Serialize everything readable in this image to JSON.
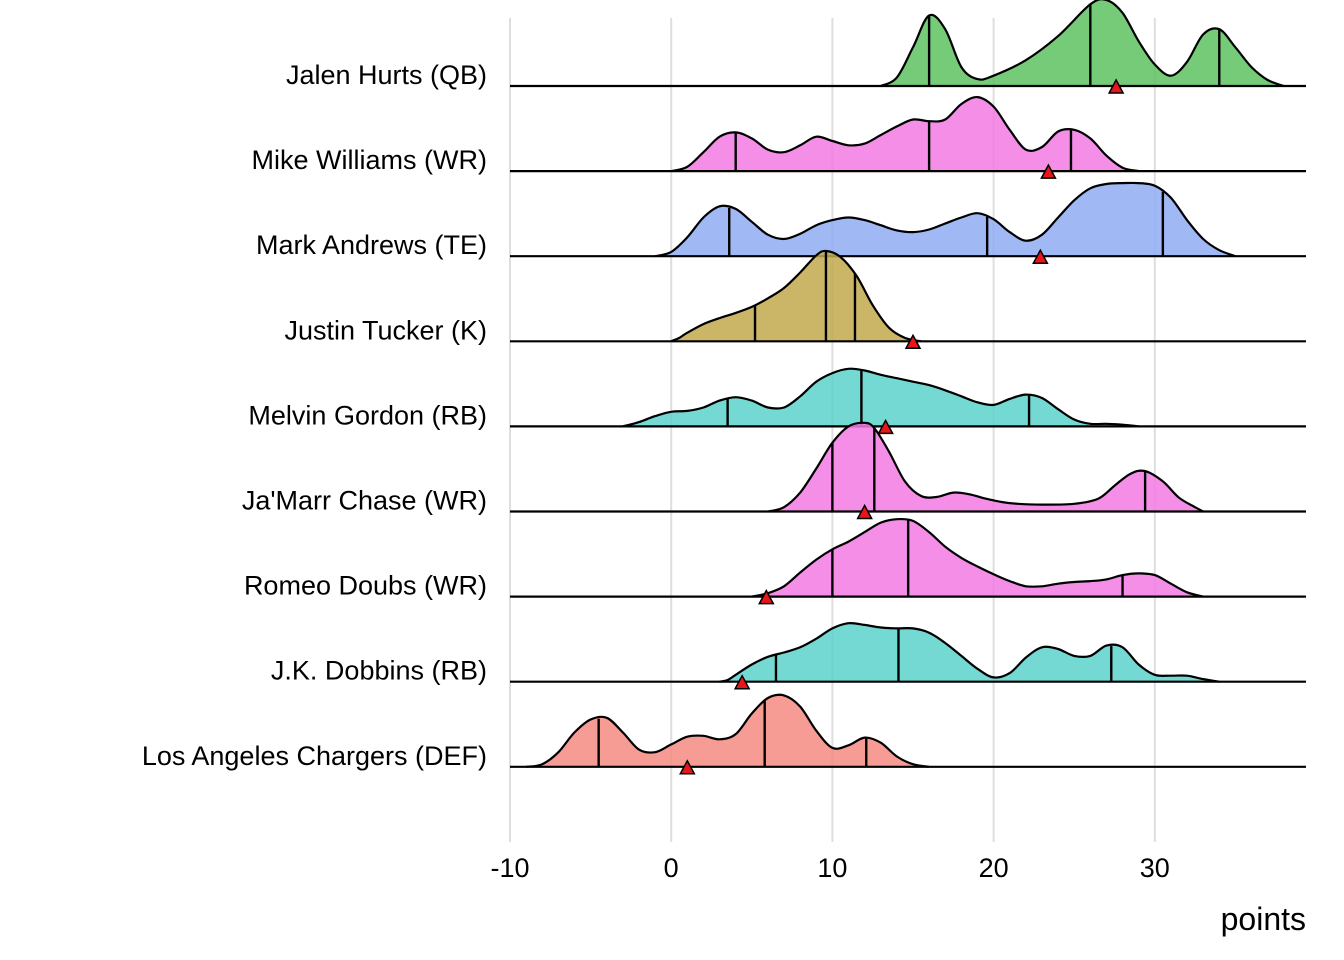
{
  "chart_data": {
    "type": "ridgeline",
    "title": "",
    "xlabel": "points",
    "ylabel": "",
    "xlim": [
      -10,
      39
    ],
    "xticks": [
      -10,
      0,
      10,
      20,
      30
    ],
    "xtick_labels": [
      "-10",
      "0",
      "10",
      "20",
      "30"
    ],
    "grid": "vertical lines at x ticks",
    "legend": "none",
    "marker": "red triangle = projected / current points",
    "series": [
      {
        "name": "Jalen Hurts (QB)",
        "color": "#5ec262",
        "quantiles": [
          16.0,
          26.0,
          34.0
        ],
        "marker": 27.6,
        "density": [
          [
            13.0,
            0.0
          ],
          [
            14.0,
            0.1
          ],
          [
            15.0,
            0.45
          ],
          [
            16.0,
            0.82
          ],
          [
            17.0,
            0.66
          ],
          [
            18.0,
            0.22
          ],
          [
            19.0,
            0.08
          ],
          [
            20.0,
            0.12
          ],
          [
            22.0,
            0.3
          ],
          [
            24.0,
            0.58
          ],
          [
            26.0,
            0.95
          ],
          [
            27.0,
            1.0
          ],
          [
            28.0,
            0.85
          ],
          [
            29.0,
            0.52
          ],
          [
            30.0,
            0.25
          ],
          [
            31.0,
            0.12
          ],
          [
            32.0,
            0.28
          ],
          [
            33.0,
            0.6
          ],
          [
            34.0,
            0.66
          ],
          [
            35.0,
            0.45
          ],
          [
            36.0,
            0.22
          ],
          [
            37.0,
            0.07
          ],
          [
            38.0,
            0.0
          ]
        ]
      },
      {
        "name": "Mike Williams (WR)",
        "color": "#f27ae3",
        "quantiles": [
          4.0,
          16.0,
          24.8
        ],
        "marker": 23.4,
        "density": [
          [
            0.0,
            0.0
          ],
          [
            1.0,
            0.05
          ],
          [
            2.0,
            0.22
          ],
          [
            3.0,
            0.4
          ],
          [
            4.0,
            0.45
          ],
          [
            5.0,
            0.38
          ],
          [
            6.0,
            0.25
          ],
          [
            7.0,
            0.22
          ],
          [
            8.0,
            0.3
          ],
          [
            9.0,
            0.4
          ],
          [
            10.0,
            0.35
          ],
          [
            11.0,
            0.3
          ],
          [
            12.0,
            0.32
          ],
          [
            13.0,
            0.42
          ],
          [
            14.0,
            0.52
          ],
          [
            15.0,
            0.6
          ],
          [
            16.0,
            0.58
          ],
          [
            17.0,
            0.6
          ],
          [
            18.0,
            0.78
          ],
          [
            19.0,
            0.86
          ],
          [
            20.0,
            0.75
          ],
          [
            21.0,
            0.48
          ],
          [
            22.0,
            0.25
          ],
          [
            23.0,
            0.28
          ],
          [
            24.0,
            0.46
          ],
          [
            25.0,
            0.48
          ],
          [
            26.0,
            0.38
          ],
          [
            27.0,
            0.18
          ],
          [
            28.0,
            0.04
          ],
          [
            29.0,
            0.0
          ]
        ]
      },
      {
        "name": "Mark Andrews (TE)",
        "color": "#8fabf2",
        "quantiles": [
          3.6,
          19.6,
          30.5
        ],
        "marker": 22.9,
        "density": [
          [
            -1.0,
            0.0
          ],
          [
            0.0,
            0.05
          ],
          [
            1.0,
            0.22
          ],
          [
            2.0,
            0.45
          ],
          [
            3.0,
            0.58
          ],
          [
            4.0,
            0.55
          ],
          [
            5.0,
            0.4
          ],
          [
            6.0,
            0.25
          ],
          [
            7.0,
            0.2
          ],
          [
            8.0,
            0.26
          ],
          [
            9.0,
            0.36
          ],
          [
            10.0,
            0.42
          ],
          [
            11.0,
            0.45
          ],
          [
            12.0,
            0.42
          ],
          [
            13.0,
            0.36
          ],
          [
            14.0,
            0.3
          ],
          [
            15.0,
            0.28
          ],
          [
            16.0,
            0.31
          ],
          [
            17.0,
            0.38
          ],
          [
            18.0,
            0.45
          ],
          [
            19.0,
            0.5
          ],
          [
            20.0,
            0.43
          ],
          [
            21.0,
            0.28
          ],
          [
            22.0,
            0.18
          ],
          [
            23.0,
            0.25
          ],
          [
            24.0,
            0.45
          ],
          [
            25.0,
            0.65
          ],
          [
            26.0,
            0.79
          ],
          [
            27.0,
            0.84
          ],
          [
            28.0,
            0.85
          ],
          [
            29.0,
            0.85
          ],
          [
            30.0,
            0.82
          ],
          [
            31.0,
            0.68
          ],
          [
            32.0,
            0.42
          ],
          [
            33.0,
            0.2
          ],
          [
            34.0,
            0.07
          ],
          [
            35.0,
            0.0
          ]
        ]
      },
      {
        "name": "Justin Tucker (K)",
        "color": "#c2a94e",
        "quantiles": [
          5.2,
          9.6,
          11.4
        ],
        "marker": 15.0,
        "density": [
          [
            0.0,
            0.0
          ],
          [
            0.5,
            0.04
          ],
          [
            1.0,
            0.1
          ],
          [
            2.0,
            0.2
          ],
          [
            3.0,
            0.27
          ],
          [
            4.0,
            0.33
          ],
          [
            5.0,
            0.4
          ],
          [
            6.0,
            0.5
          ],
          [
            7.0,
            0.62
          ],
          [
            8.0,
            0.8
          ],
          [
            9.0,
            1.0
          ],
          [
            9.6,
            1.05
          ],
          [
            10.5,
            0.98
          ],
          [
            11.5,
            0.76
          ],
          [
            12.5,
            0.42
          ],
          [
            13.5,
            0.16
          ],
          [
            14.5,
            0.04
          ],
          [
            15.5,
            0.0
          ]
        ]
      },
      {
        "name": "Melvin Gordon (RB)",
        "color": "#5cd1cb",
        "quantiles": [
          3.5,
          11.8,
          22.2
        ],
        "marker": 13.3,
        "density": [
          [
            -3.0,
            0.0
          ],
          [
            -2.0,
            0.05
          ],
          [
            -1.0,
            0.12
          ],
          [
            0.0,
            0.17
          ],
          [
            1.0,
            0.18
          ],
          [
            2.0,
            0.22
          ],
          [
            3.0,
            0.3
          ],
          [
            4.0,
            0.34
          ],
          [
            5.0,
            0.3
          ],
          [
            6.0,
            0.22
          ],
          [
            7.0,
            0.22
          ],
          [
            8.0,
            0.35
          ],
          [
            9.0,
            0.52
          ],
          [
            10.0,
            0.62
          ],
          [
            11.0,
            0.67
          ],
          [
            12.0,
            0.65
          ],
          [
            13.0,
            0.6
          ],
          [
            14.0,
            0.56
          ],
          [
            15.0,
            0.52
          ],
          [
            16.0,
            0.48
          ],
          [
            17.0,
            0.42
          ],
          [
            18.0,
            0.35
          ],
          [
            19.0,
            0.28
          ],
          [
            20.0,
            0.25
          ],
          [
            21.0,
            0.32
          ],
          [
            22.0,
            0.37
          ],
          [
            23.0,
            0.33
          ],
          [
            24.0,
            0.2
          ],
          [
            25.0,
            0.08
          ],
          [
            26.0,
            0.03
          ],
          [
            27.0,
            0.03
          ],
          [
            28.0,
            0.02
          ],
          [
            29.0,
            0.0
          ]
        ]
      },
      {
        "name": "Ja'Marr Chase (WR)",
        "color": "#f27ae3",
        "quantiles": [
          10.0,
          12.6,
          29.4
        ],
        "marker": 12.0,
        "density": [
          [
            6.0,
            0.0
          ],
          [
            7.0,
            0.05
          ],
          [
            8.0,
            0.22
          ],
          [
            9.0,
            0.5
          ],
          [
            10.0,
            0.8
          ],
          [
            11.0,
            0.99
          ],
          [
            12.0,
            1.03
          ],
          [
            12.6,
            0.97
          ],
          [
            13.5,
            0.7
          ],
          [
            14.5,
            0.35
          ],
          [
            15.5,
            0.18
          ],
          [
            16.5,
            0.17
          ],
          [
            17.5,
            0.22
          ],
          [
            18.5,
            0.2
          ],
          [
            19.5,
            0.15
          ],
          [
            20.5,
            0.11
          ],
          [
            21.5,
            0.09
          ],
          [
            23.0,
            0.08
          ],
          [
            25.0,
            0.09
          ],
          [
            26.5,
            0.15
          ],
          [
            27.5,
            0.3
          ],
          [
            28.5,
            0.44
          ],
          [
            29.4,
            0.47
          ],
          [
            30.5,
            0.35
          ],
          [
            31.5,
            0.16
          ],
          [
            32.5,
            0.05
          ],
          [
            33.0,
            0.0
          ]
        ]
      },
      {
        "name": "Romeo Doubs (WR)",
        "color": "#f27ae3",
        "quantiles": [
          10.0,
          14.7,
          28.0
        ],
        "marker": 5.9,
        "density": [
          [
            5.0,
            0.0
          ],
          [
            6.0,
            0.04
          ],
          [
            7.0,
            0.12
          ],
          [
            8.0,
            0.28
          ],
          [
            9.0,
            0.43
          ],
          [
            10.0,
            0.55
          ],
          [
            11.0,
            0.64
          ],
          [
            12.0,
            0.75
          ],
          [
            13.0,
            0.86
          ],
          [
            14.0,
            0.9
          ],
          [
            15.0,
            0.88
          ],
          [
            16.0,
            0.75
          ],
          [
            17.0,
            0.58
          ],
          [
            18.0,
            0.45
          ],
          [
            19.0,
            0.35
          ],
          [
            20.0,
            0.26
          ],
          [
            21.0,
            0.18
          ],
          [
            22.0,
            0.12
          ],
          [
            23.0,
            0.12
          ],
          [
            24.0,
            0.15
          ],
          [
            25.0,
            0.17
          ],
          [
            26.0,
            0.18
          ],
          [
            27.0,
            0.2
          ],
          [
            28.0,
            0.25
          ],
          [
            29.0,
            0.27
          ],
          [
            30.0,
            0.25
          ],
          [
            31.0,
            0.15
          ],
          [
            32.0,
            0.05
          ],
          [
            33.0,
            0.0
          ]
        ]
      },
      {
        "name": "J.K. Dobbins (RB)",
        "color": "#5cd1cb",
        "quantiles": [
          6.5,
          14.1,
          27.3
        ],
        "marker": 4.4,
        "density": [
          [
            3.0,
            0.0
          ],
          [
            3.5,
            0.02
          ],
          [
            4.0,
            0.08
          ],
          [
            5.0,
            0.2
          ],
          [
            6.0,
            0.29
          ],
          [
            7.0,
            0.34
          ],
          [
            8.0,
            0.4
          ],
          [
            9.0,
            0.5
          ],
          [
            10.0,
            0.62
          ],
          [
            11.0,
            0.68
          ],
          [
            12.0,
            0.66
          ],
          [
            13.0,
            0.63
          ],
          [
            14.0,
            0.62
          ],
          [
            15.0,
            0.62
          ],
          [
            16.0,
            0.57
          ],
          [
            17.0,
            0.45
          ],
          [
            18.0,
            0.3
          ],
          [
            19.0,
            0.15
          ],
          [
            20.0,
            0.05
          ],
          [
            21.0,
            0.1
          ],
          [
            22.0,
            0.28
          ],
          [
            23.0,
            0.4
          ],
          [
            24.0,
            0.38
          ],
          [
            25.0,
            0.3
          ],
          [
            26.0,
            0.3
          ],
          [
            27.0,
            0.42
          ],
          [
            28.0,
            0.4
          ],
          [
            29.0,
            0.2
          ],
          [
            30.0,
            0.08
          ],
          [
            31.0,
            0.07
          ],
          [
            32.0,
            0.07
          ],
          [
            33.0,
            0.03
          ],
          [
            34.0,
            0.0
          ]
        ]
      },
      {
        "name": "Los Angeles Chargers (DEF)",
        "color": "#f48b82",
        "quantiles": [
          -4.5,
          5.8,
          12.1
        ],
        "marker": 1.0,
        "density": [
          [
            -9.0,
            0.0
          ],
          [
            -8.0,
            0.03
          ],
          [
            -7.0,
            0.17
          ],
          [
            -6.0,
            0.4
          ],
          [
            -5.0,
            0.55
          ],
          [
            -4.0,
            0.57
          ],
          [
            -3.0,
            0.4
          ],
          [
            -2.0,
            0.2
          ],
          [
            -1.0,
            0.17
          ],
          [
            0.0,
            0.26
          ],
          [
            1.0,
            0.35
          ],
          [
            2.0,
            0.36
          ],
          [
            3.0,
            0.32
          ],
          [
            4.0,
            0.38
          ],
          [
            5.0,
            0.62
          ],
          [
            6.0,
            0.8
          ],
          [
            7.0,
            0.83
          ],
          [
            8.0,
            0.7
          ],
          [
            9.0,
            0.42
          ],
          [
            10.0,
            0.22
          ],
          [
            11.0,
            0.25
          ],
          [
            12.0,
            0.34
          ],
          [
            13.0,
            0.28
          ],
          [
            14.0,
            0.12
          ],
          [
            15.0,
            0.03
          ],
          [
            16.0,
            0.0
          ]
        ]
      }
    ]
  }
}
